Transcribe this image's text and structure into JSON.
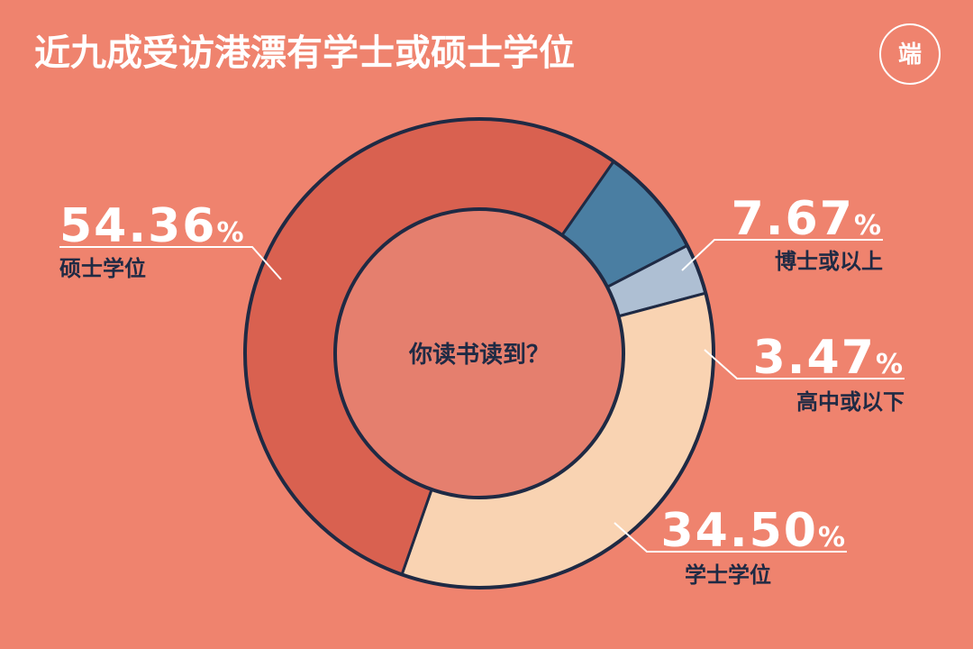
{
  "title": "近九成受访港漂有学士或硕士学位",
  "logo": {
    "text": "端",
    "icon": "publisher-logo-icon"
  },
  "chart_data": {
    "type": "pie",
    "center_label": "你读书读到？",
    "slices": [
      {
        "label": "硕士学位",
        "value": 54.36,
        "display": "54.36",
        "color": "#d96150"
      },
      {
        "label": "博士或以上",
        "value": 7.67,
        "display": "7.67",
        "color": "#4a7ea2"
      },
      {
        "label": "高中或以下",
        "value": 3.47,
        "display": "3.47",
        "color": "#aebfd3"
      },
      {
        "label": "学士学位",
        "value": 34.5,
        "display": "34.50",
        "color": "#f9d3b2"
      }
    ],
    "percent_sign": "%",
    "colors": {
      "background": "#ef836e",
      "outline": "#1f2a44",
      "hole": "#e57f6e",
      "label_text": "#1f2a44"
    }
  }
}
